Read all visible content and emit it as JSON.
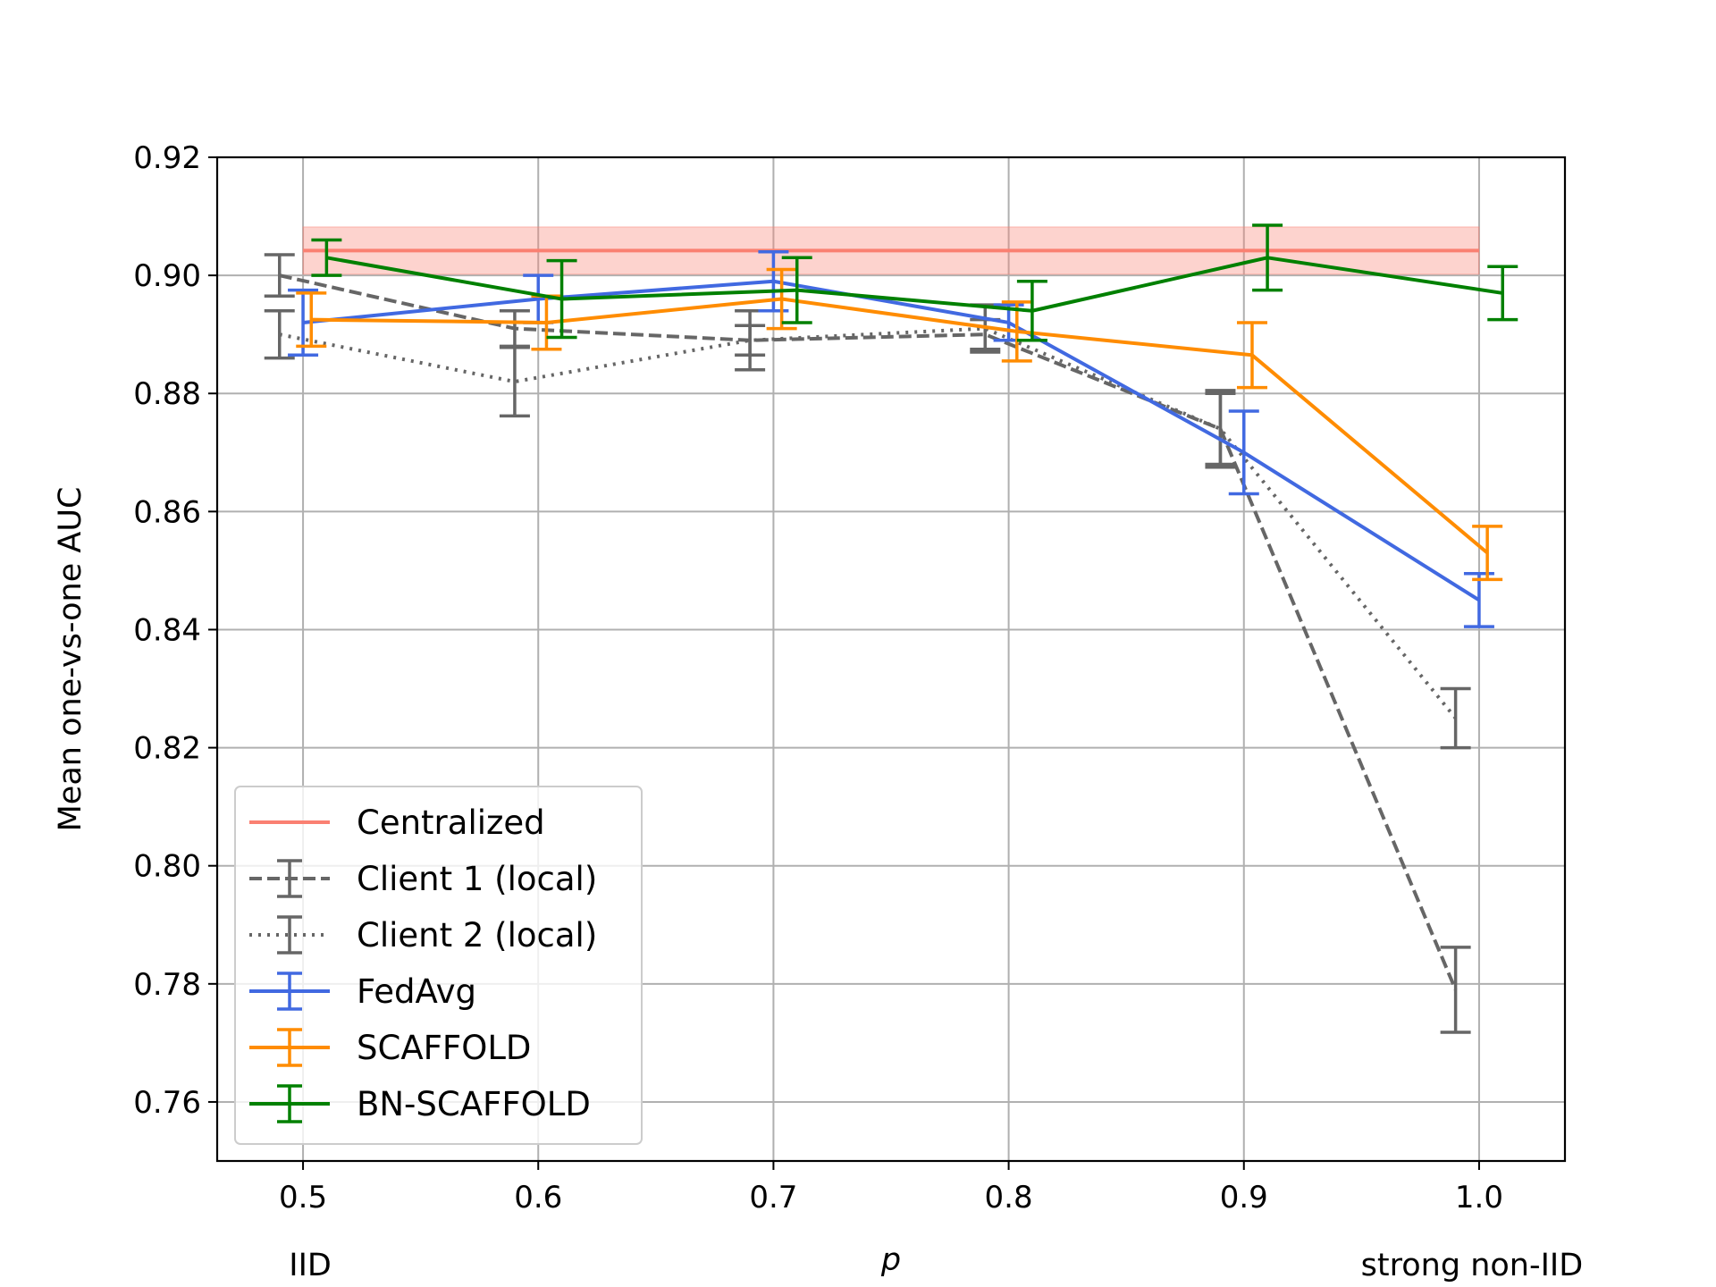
{
  "chart_data": {
    "type": "line",
    "title": "",
    "xlabel": "p",
    "ylabel": "Mean one-vs-one AUC",
    "x": [
      0.5,
      0.6,
      0.7,
      0.8,
      0.9,
      1.0
    ],
    "x_tick_labels": [
      "0.5",
      "0.6",
      "0.7",
      "0.8",
      "0.9",
      "1.0"
    ],
    "y_ticks": [
      0.76,
      0.78,
      0.8,
      0.82,
      0.84,
      0.86,
      0.88,
      0.9,
      0.92
    ],
    "y_tick_labels": [
      "0.76",
      "0.78",
      "0.80",
      "0.82",
      "0.84",
      "0.86",
      "0.88",
      "0.90",
      "0.92"
    ],
    "xlim": [
      0.4635,
      1.0365
    ],
    "ylim": [
      0.75,
      0.92
    ],
    "grid": true,
    "legend_position": "lower-left",
    "x_annotations": [
      {
        "text": "IID",
        "x": 0.5
      },
      {
        "text": "strong non-IID",
        "x": 1.0
      }
    ],
    "band": {
      "name": "Centralized",
      "x": [
        0.5,
        1.0
      ],
      "value": 0.9042,
      "lower": 0.9002,
      "upper": 0.9082,
      "color": "#fa8072"
    },
    "series": [
      {
        "name": "Client 1 (local)",
        "color": "#666666",
        "style": "dashed",
        "x_offset": -0.01,
        "values": [
          0.9,
          0.891,
          0.889,
          0.89,
          0.874,
          0.779
        ],
        "errors": [
          0.0035,
          0.003,
          0.0025,
          0.0025,
          0.0065,
          0.0072
        ]
      },
      {
        "name": "Client 2 (local)",
        "color": "#666666",
        "style": "dotted",
        "x_offset": -0.01,
        "values": [
          0.89,
          0.882,
          0.889,
          0.891,
          0.874,
          0.825
        ],
        "errors": [
          0.004,
          0.0058,
          0.005,
          0.004,
          0.006,
          0.005
        ]
      },
      {
        "name": "FedAvg",
        "color": "#4169e1",
        "style": "solid",
        "x_offset": 0.0,
        "values": [
          0.892,
          0.896,
          0.899,
          0.892,
          0.87,
          0.845
        ],
        "errors": [
          0.0055,
          0.004,
          0.005,
          0.003,
          0.007,
          0.0045
        ]
      },
      {
        "name": "SCAFFOLD",
        "color": "#ff8c00",
        "style": "solid",
        "x_offset": 0.0035,
        "values": [
          0.8925,
          0.892,
          0.896,
          0.8905,
          0.8865,
          0.853
        ],
        "errors": [
          0.0045,
          0.0045,
          0.005,
          0.005,
          0.0055,
          0.0045
        ]
      },
      {
        "name": "BN-SCAFFOLD",
        "color": "#008000",
        "style": "solid",
        "x_offset": 0.01,
        "values": [
          0.903,
          0.896,
          0.8975,
          0.894,
          0.903,
          0.897
        ],
        "errors": [
          0.003,
          0.0065,
          0.0055,
          0.005,
          0.0055,
          0.0045
        ]
      }
    ]
  }
}
